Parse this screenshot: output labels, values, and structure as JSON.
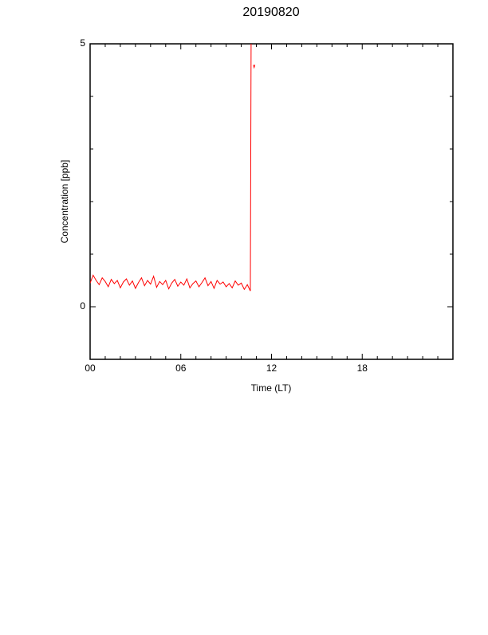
{
  "chart_data": {
    "type": "line",
    "title": "20190820",
    "xlabel": "Time (LT)",
    "ylabel": "Concentration [ppb]",
    "x": [
      0,
      0.2,
      0.4,
      0.6,
      0.8,
      1,
      1.2,
      1.4,
      1.6,
      1.8,
      2,
      2.2,
      2.4,
      2.6,
      2.8,
      3,
      3.2,
      3.4,
      3.6,
      3.8,
      4,
      4.2,
      4.4,
      4.6,
      4.8,
      5,
      5.2,
      5.4,
      5.6,
      5.8,
      6,
      6.2,
      6.4,
      6.6,
      6.8,
      7,
      7.2,
      7.4,
      7.6,
      7.8,
      8,
      8.2,
      8.4,
      8.6,
      8.8,
      9,
      9.2,
      9.4,
      9.6,
      9.8,
      10,
      10.2,
      10.4,
      10.6,
      10.65,
      10.75,
      10.8,
      10.85,
      10.9
    ],
    "series": [
      {
        "name": "Concentration",
        "color": "#ff0000",
        "values": [
          0.45,
          0.6,
          0.5,
          0.42,
          0.55,
          0.48,
          0.38,
          0.52,
          0.44,
          0.5,
          0.36,
          0.47,
          0.53,
          0.41,
          0.49,
          0.35,
          0.46,
          0.55,
          0.4,
          0.5,
          0.43,
          0.58,
          0.37,
          0.48,
          0.42,
          0.5,
          0.34,
          0.45,
          0.52,
          0.39,
          0.47,
          0.41,
          0.53,
          0.36,
          0.44,
          0.49,
          0.38,
          0.46,
          0.55,
          0.4,
          0.48,
          0.35,
          0.5,
          0.43,
          0.47,
          0.38,
          0.44,
          0.36,
          0.49,
          0.41,
          0.45,
          0.33,
          0.42,
          0.3,
          5,
          null,
          4.6,
          4.55,
          4.6
        ]
      }
    ],
    "xlim": [
      0,
      24
    ],
    "xticks": [
      {
        "value": 0,
        "label": "00"
      },
      {
        "value": 6,
        "label": "06"
      },
      {
        "value": 12,
        "label": "12"
      },
      {
        "value": 18,
        "label": "18"
      }
    ],
    "xminor_ticks": [
      1,
      2,
      3,
      4,
      5,
      7,
      8,
      9,
      10,
      11,
      13,
      14,
      15,
      16,
      17,
      19,
      20,
      21,
      22,
      23
    ],
    "ylim": [
      -1,
      5
    ],
    "yticks": [
      0,
      5
    ],
    "yminor_ticks": [
      1,
      2,
      3,
      4
    ]
  }
}
